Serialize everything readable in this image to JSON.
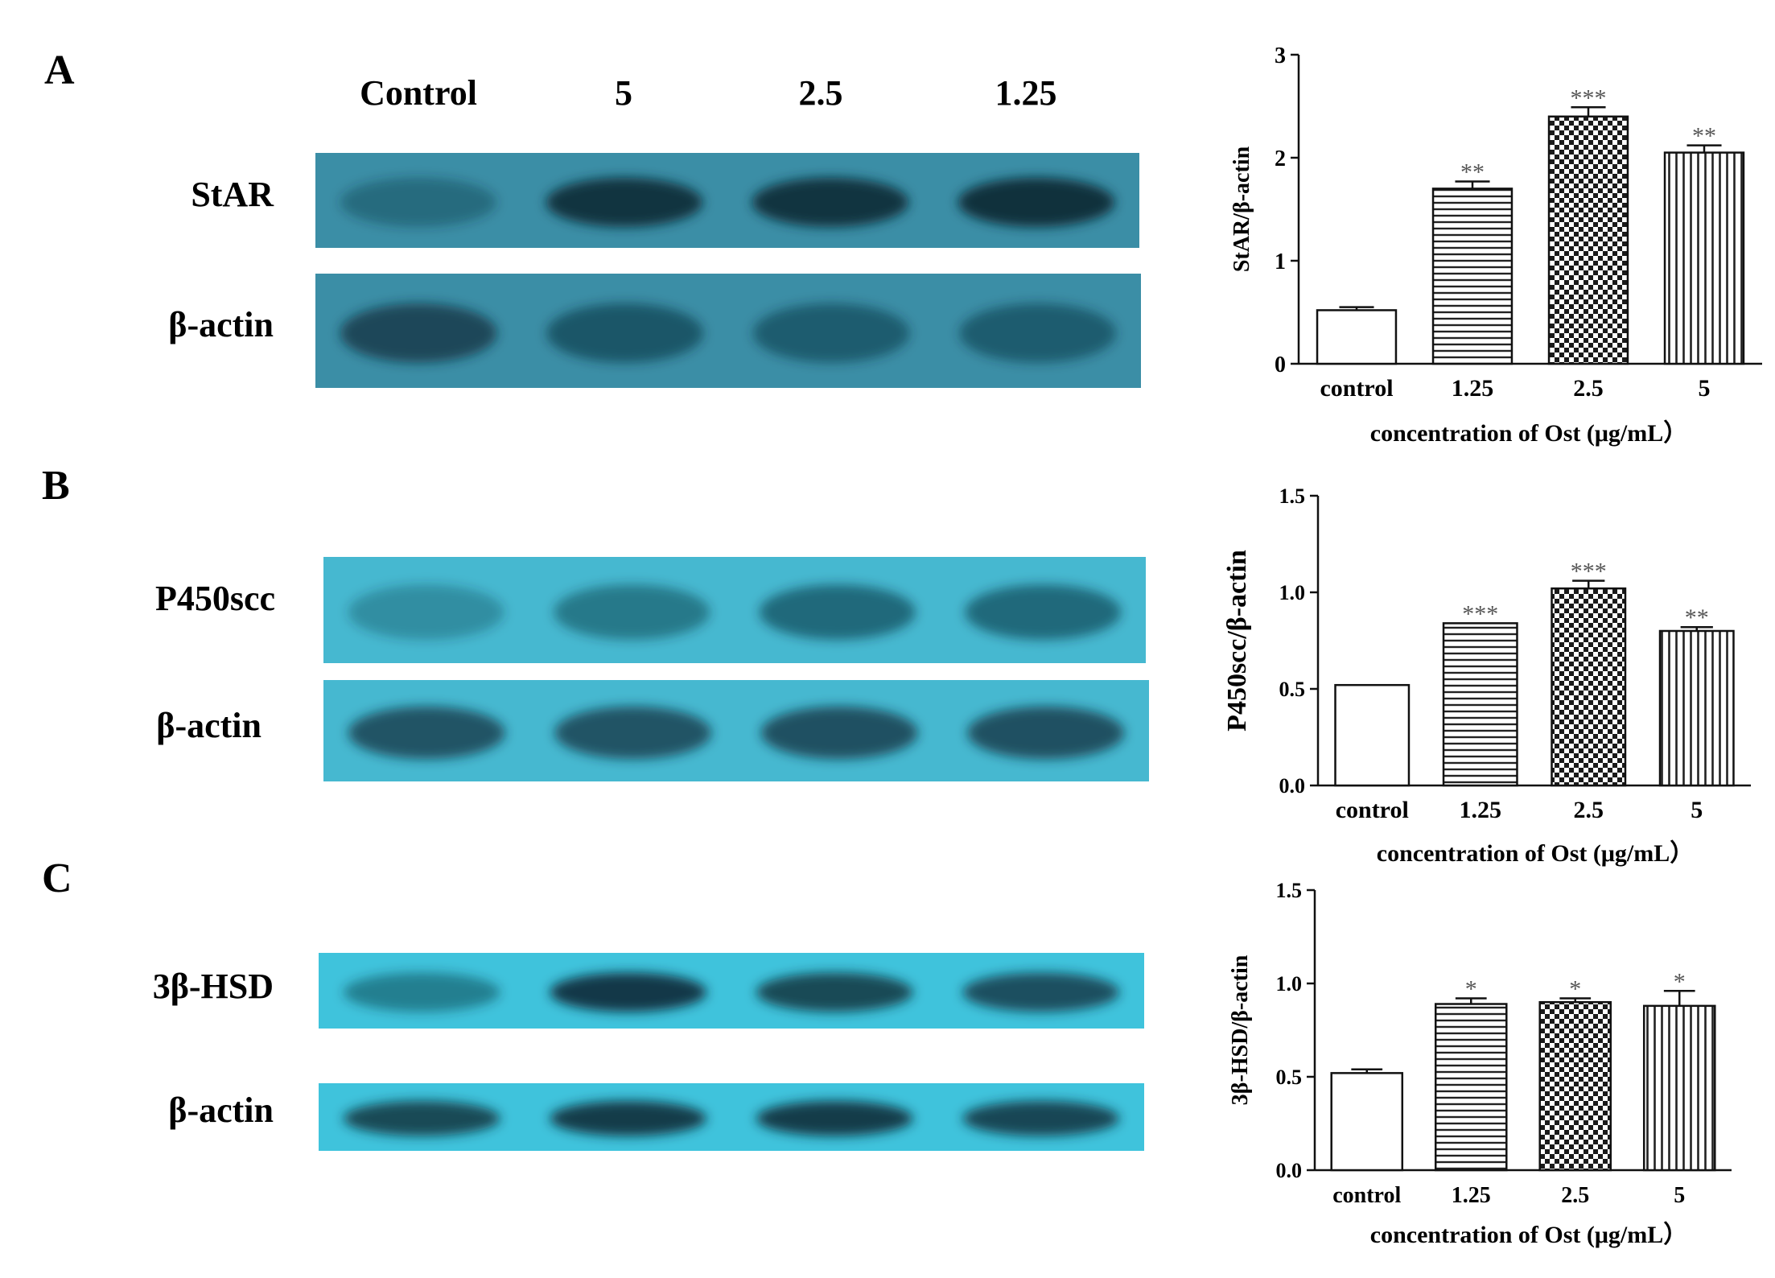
{
  "panels": [
    {
      "letter": "A",
      "blot": {
        "lane_labels": [
          "Control",
          "5",
          "2.5",
          "1.25"
        ],
        "rows": [
          {
            "label": "StAR",
            "intensity": [
              0.35,
              0.92,
              0.92,
              0.95
            ]
          },
          {
            "label": "β-actin",
            "intensity": [
              0.7,
              0.55,
              0.5,
              0.5
            ]
          }
        ]
      }
    },
    {
      "letter": "B",
      "blot": {
        "lane_labels": [],
        "rows": [
          {
            "label": "P450scc",
            "intensity": [
              0.3,
              0.45,
              0.55,
              0.55
            ]
          },
          {
            "label": "β-actin",
            "intensity": [
              0.7,
              0.7,
              0.72,
              0.72
            ]
          }
        ]
      }
    },
    {
      "letter": "C",
      "blot": {
        "lane_labels": [],
        "rows": [
          {
            "label": "3β-HSD",
            "intensity": [
              0.45,
              0.9,
              0.8,
              0.75
            ]
          },
          {
            "label": "β-actin",
            "intensity": [
              0.8,
              0.88,
              0.88,
              0.82
            ]
          }
        ]
      }
    }
  ],
  "colors": {
    "blot_bg_a": "#3b8ea6",
    "blot_bg_b": "#46b8d0",
    "blot_bg_c": "#3fc3dc",
    "band": "#0a2a36"
  },
  "chart_data": [
    {
      "type": "bar",
      "categories": [
        "control",
        "1.25",
        "2.5",
        "5"
      ],
      "values": [
        0.52,
        1.7,
        2.4,
        2.05
      ],
      "errors": [
        0.03,
        0.07,
        0.09,
        0.07
      ],
      "significance": [
        "",
        "**",
        "***",
        "**"
      ],
      "patterns": [
        "none",
        "horizontal-lines",
        "checker",
        "vertical-lines"
      ],
      "xlabel": "concentration of Ost (μg/mL）",
      "ylabel": "StAR/β-actin",
      "ylim": [
        0,
        3
      ],
      "yticks": [
        "0",
        "1",
        "2",
        "3"
      ],
      "ytick_values": [
        0,
        1,
        2,
        3
      ]
    },
    {
      "type": "bar",
      "categories": [
        "control",
        "1.25",
        "2.5",
        "5"
      ],
      "values": [
        0.52,
        0.84,
        1.02,
        0.8
      ],
      "errors": [
        0.0,
        0.0,
        0.04,
        0.02
      ],
      "significance": [
        "",
        "***",
        "***",
        "**"
      ],
      "patterns": [
        "none",
        "horizontal-lines",
        "checker",
        "vertical-lines"
      ],
      "xlabel": "concentration of Ost (μg/mL）",
      "ylabel": "P450scc/β-actin",
      "ylim": [
        0,
        1.5
      ],
      "yticks": [
        "0.0",
        "0.5",
        "1.0",
        "1.5"
      ],
      "ytick_values": [
        0,
        0.5,
        1.0,
        1.5
      ]
    },
    {
      "type": "bar",
      "categories": [
        "control",
        "1.25",
        "2.5",
        "5"
      ],
      "values": [
        0.52,
        0.89,
        0.9,
        0.88
      ],
      "errors": [
        0.02,
        0.03,
        0.02,
        0.08
      ],
      "significance": [
        "",
        "*",
        "*",
        "*"
      ],
      "patterns": [
        "none",
        "horizontal-lines",
        "checker",
        "vertical-lines"
      ],
      "xlabel": "concentration of Ost (μg/mL）",
      "ylabel": "3β-HSD/β-actin",
      "ylim": [
        0,
        1.5
      ],
      "yticks": [
        "0.0",
        "0.5",
        "1.0",
        "1.5"
      ],
      "ytick_values": [
        0,
        0.5,
        1.0,
        1.5
      ]
    }
  ]
}
